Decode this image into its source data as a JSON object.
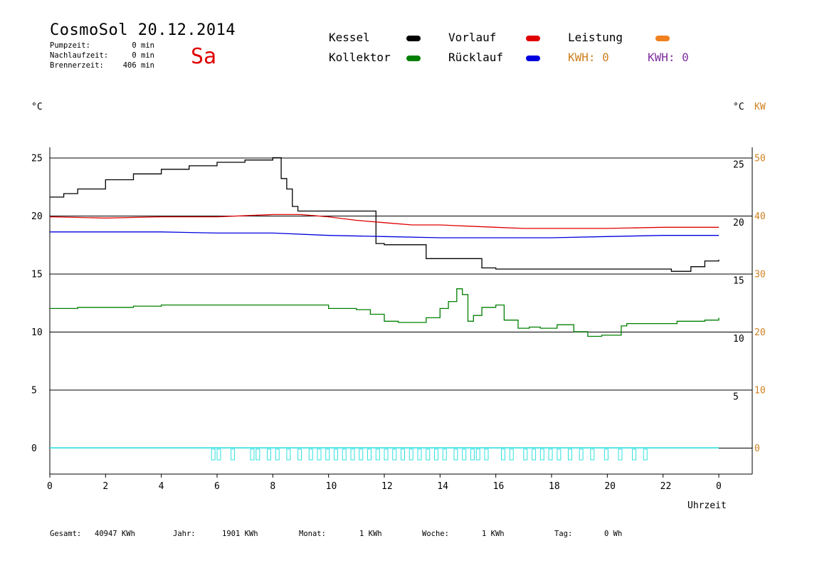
{
  "header": {
    "title": "CosmoSol 20.12.2014",
    "day": "Sa",
    "stats": [
      {
        "label": "Pumpzeit:",
        "value": "0 min"
      },
      {
        "label": "Nachlaufzeit:",
        "value": "0 min"
      },
      {
        "label": "Brennerzeit:",
        "value": "406 min"
      }
    ]
  },
  "legend": {
    "kessel": {
      "label": "Kessel",
      "color": "#000000"
    },
    "kollektor": {
      "label": "Kollektor",
      "color": "#008000"
    },
    "vorlauf": {
      "label": "Vorlauf",
      "color": "#e00000"
    },
    "ruecklauf": {
      "label": "Rücklauf",
      "color": "#0000e0"
    },
    "leistung": {
      "label": "Leistung",
      "color": "#f08020"
    },
    "kwh_orange": {
      "label": "KWH: 0",
      "color": "#d08020"
    },
    "kwh_purple": {
      "label": "KWH: 0",
      "color": "#8030a0"
    }
  },
  "units": {
    "left": "°C",
    "right_c": "°C",
    "right_kw": "KW"
  },
  "footer": {
    "gesamt_label": "Gesamt:",
    "gesamt_value": "40947 KWh",
    "jahr_label": "Jahr:",
    "jahr_value": "1901 KWh",
    "monat_label": "Monat:",
    "monat_value": "1 KWh",
    "woche_label": "Woche:",
    "woche_value": "1 KWh",
    "tag_label": "Tag:",
    "tag_value": "0 Wh"
  },
  "chart_data": {
    "type": "line",
    "xlabel": "Uhrzeit",
    "x_ticks": [
      "0",
      "2",
      "4",
      "6",
      "8",
      "10",
      "12",
      "14",
      "16",
      "18",
      "20",
      "22",
      "0"
    ],
    "xlim": [
      0,
      24
    ],
    "ylim": [
      -2,
      26
    ],
    "y_ticks_left": [
      "25",
      "20",
      "15",
      "10",
      "5",
      "0"
    ],
    "y_ticks_right_c": [
      "25",
      "20",
      "15",
      "10",
      "5"
    ],
    "y_ticks_right_kw": [
      "50",
      "40",
      "30",
      "20",
      "10",
      "0"
    ],
    "grid_lines_y": [
      0,
      5,
      10,
      15,
      20,
      25
    ],
    "series": [
      {
        "name": "Kessel",
        "color": "#000000",
        "step": true,
        "x": [
          0,
          0.5,
          1,
          2,
          3,
          4,
          5,
          6,
          7,
          8,
          8.1,
          8.3,
          8.5,
          8.7,
          8.9,
          9.5,
          10,
          11,
          11.5,
          11.7,
          12,
          13,
          13.5,
          13.8,
          14.5,
          15,
          15.5,
          16,
          18,
          20,
          22,
          22.3,
          23,
          23.5,
          24
        ],
        "y": [
          21.6,
          21.9,
          22.3,
          23.1,
          23.6,
          24.0,
          24.3,
          24.6,
          24.8,
          25.0,
          25.0,
          23.2,
          22.3,
          20.8,
          20.4,
          20.4,
          20.4,
          20.4,
          20.4,
          17.6,
          17.5,
          17.5,
          16.3,
          16.3,
          16.3,
          16.3,
          15.5,
          15.4,
          15.4,
          15.4,
          15.4,
          15.2,
          15.6,
          16.1,
          16.2
        ]
      },
      {
        "name": "Vorlauf",
        "color": "#e00000",
        "step": false,
        "x": [
          0,
          2,
          4,
          6,
          8,
          9,
          10,
          11,
          12,
          13,
          14,
          15,
          16,
          17,
          18,
          20,
          22,
          24
        ],
        "y": [
          19.9,
          19.8,
          19.9,
          19.9,
          20.1,
          20.1,
          19.9,
          19.6,
          19.4,
          19.2,
          19.2,
          19.1,
          19.0,
          18.9,
          18.9,
          18.9,
          19.0,
          19.0
        ]
      },
      {
        "name": "Rücklauf",
        "color": "#0000e0",
        "step": false,
        "x": [
          0,
          2,
          4,
          6,
          8,
          10,
          12,
          14,
          16,
          18,
          20,
          22,
          24
        ],
        "y": [
          18.6,
          18.6,
          18.6,
          18.5,
          18.5,
          18.3,
          18.2,
          18.1,
          18.1,
          18.1,
          18.2,
          18.3,
          18.3
        ]
      },
      {
        "name": "Kollektor",
        "color": "#008000",
        "step": true,
        "x": [
          0,
          1,
          2,
          3,
          4,
          5,
          6,
          7,
          8,
          9,
          10,
          11,
          11.5,
          12,
          12.5,
          13,
          13.5,
          14,
          14.3,
          14.6,
          14.8,
          15.0,
          15.2,
          15.5,
          16,
          16.3,
          16.8,
          17.2,
          17.6,
          18.2,
          18.8,
          19.3,
          19.8,
          20.5,
          20.7,
          21.5,
          22.5,
          23.5,
          24
        ],
        "y": [
          12.0,
          12.1,
          12.1,
          12.2,
          12.3,
          12.3,
          12.3,
          12.3,
          12.3,
          12.3,
          12.0,
          11.9,
          11.5,
          10.9,
          10.8,
          10.8,
          11.2,
          12.0,
          12.6,
          13.7,
          13.2,
          10.9,
          11.4,
          12.1,
          12.3,
          11.0,
          10.3,
          10.4,
          10.3,
          10.6,
          10.0,
          9.6,
          9.7,
          10.5,
          10.7,
          10.7,
          10.9,
          11.0,
          11.2
        ]
      },
      {
        "name": "Leistung",
        "color": "#30e0e0",
        "step": true,
        "x": [
          0,
          24
        ],
        "y": [
          0,
          0
        ]
      }
    ],
    "pump_markers_x": [
      5.8,
      6.0,
      6.5,
      7.2,
      7.4,
      7.8,
      8.1,
      8.5,
      8.9,
      9.3,
      9.6,
      9.9,
      10.2,
      10.5,
      10.8,
      11.1,
      11.4,
      11.7,
      12.0,
      12.3,
      12.6,
      12.9,
      13.2,
      13.5,
      13.8,
      14.1,
      14.5,
      14.8,
      15.1,
      15.3,
      15.6,
      16.2,
      16.5,
      17.0,
      17.3,
      17.6,
      17.9,
      18.2,
      18.6,
      19.0,
      19.4,
      19.9,
      20.4,
      20.9,
      21.3
    ]
  }
}
